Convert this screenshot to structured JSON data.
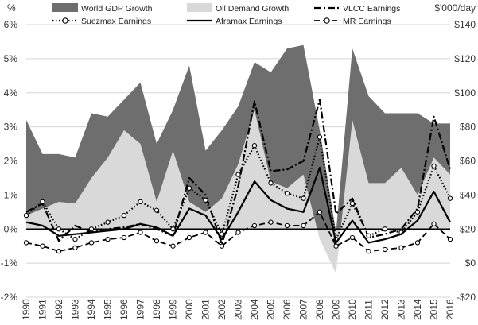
{
  "chart_data": {
    "type": "area",
    "title": "",
    "left_axis": {
      "label": "%",
      "range": [
        -2,
        6
      ],
      "ticks": [
        "-2%",
        "-1%",
        "0%",
        "1%",
        "2%",
        "3%",
        "4%",
        "5%",
        "6%"
      ],
      "tick_values": [
        -2,
        -1,
        0,
        1,
        2,
        3,
        4,
        5,
        6
      ]
    },
    "right_axis": {
      "label": "$'000/day",
      "range": [
        -20,
        140
      ],
      "ticks": [
        "-$20",
        "$0",
        "$20",
        "$40",
        "$60",
        "$80",
        "$100",
        "$120",
        "$140"
      ],
      "tick_values": [
        -20,
        0,
        20,
        40,
        60,
        80,
        100,
        120,
        140
      ]
    },
    "categories": [
      "1990",
      "1991",
      "1992",
      "1993",
      "1994",
      "1995",
      "1996",
      "1997",
      "1998",
      "1999",
      "2000",
      "2001",
      "2002",
      "2003",
      "2004",
      "2005",
      "2006",
      "2007",
      "2008",
      "2009",
      "2010",
      "2011",
      "2012",
      "2013",
      "2014",
      "2015",
      "2016"
    ],
    "grid": true,
    "series": [
      {
        "name": "World GDP Growth",
        "axis": "left",
        "kind": "area",
        "color": "#6e6e6e",
        "values": [
          3.2,
          2.2,
          2.2,
          2.1,
          3.4,
          3.3,
          3.8,
          4.3,
          2.5,
          3.5,
          4.8,
          2.3,
          2.9,
          3.6,
          4.9,
          4.6,
          5.3,
          5.4,
          2.9,
          -0.1,
          5.3,
          3.9,
          3.4,
          3.4,
          3.4,
          3.1,
          3.1
        ]
      },
      {
        "name": "Oil Demand Growth",
        "axis": "left",
        "kind": "area",
        "color": "#d9d9d9",
        "values": [
          0.4,
          0.6,
          0.8,
          0.75,
          1.5,
          2.1,
          2.9,
          2.5,
          0.8,
          2.3,
          0.8,
          0.5,
          0.9,
          1.9,
          3.5,
          1.4,
          1.2,
          1.6,
          -0.3,
          -1.3,
          3.2,
          1.35,
          1.35,
          1.8,
          1.0,
          2.1,
          1.6
        ]
      },
      {
        "name": "VLCC Earnings",
        "axis": "right",
        "kind": "line",
        "style": "dash-dot",
        "values": [
          30,
          35,
          13,
          22,
          18,
          20,
          21,
          23,
          20,
          16,
          50,
          40,
          11,
          45,
          95,
          54,
          55,
          60,
          96,
          29,
          38,
          15,
          17,
          20,
          32,
          86,
          55
        ]
      },
      {
        "name": "Suezmax Earnings",
        "axis": "right",
        "kind": "line",
        "style": "dotted-circle",
        "values": [
          28,
          36,
          20,
          14,
          20,
          24,
          28,
          36,
          31,
          20,
          44,
          37,
          17,
          52,
          69,
          47,
          41,
          38,
          74,
          14,
          35,
          16,
          20,
          18,
          30,
          57,
          38
        ]
      },
      {
        "name": "Aframax Earnings",
        "axis": "right",
        "kind": "line",
        "style": "solid",
        "values": [
          24,
          22,
          16,
          17,
          18,
          19,
          20,
          23,
          21,
          16,
          32,
          28,
          14,
          30,
          48,
          37,
          32,
          30,
          56,
          12,
          25,
          12,
          14,
          17,
          25,
          42,
          24
        ]
      },
      {
        "name": "MR Earnings",
        "axis": "right",
        "kind": "line",
        "style": "dashed-circle",
        "values": [
          12,
          10,
          7,
          9,
          12,
          14,
          15,
          18,
          13,
          10,
          15,
          18,
          10,
          18,
          22,
          24,
          22,
          22,
          30,
          10,
          15,
          7,
          8,
          9,
          12,
          23,
          14
        ]
      }
    ],
    "legend": {
      "placement": "top",
      "columns": 3,
      "entries": [
        "World GDP Growth",
        "Oil Demand Growth",
        "VLCC Earnings",
        "Suezmax Earnings",
        "Aframax Earnings",
        "MR Earnings"
      ]
    }
  }
}
